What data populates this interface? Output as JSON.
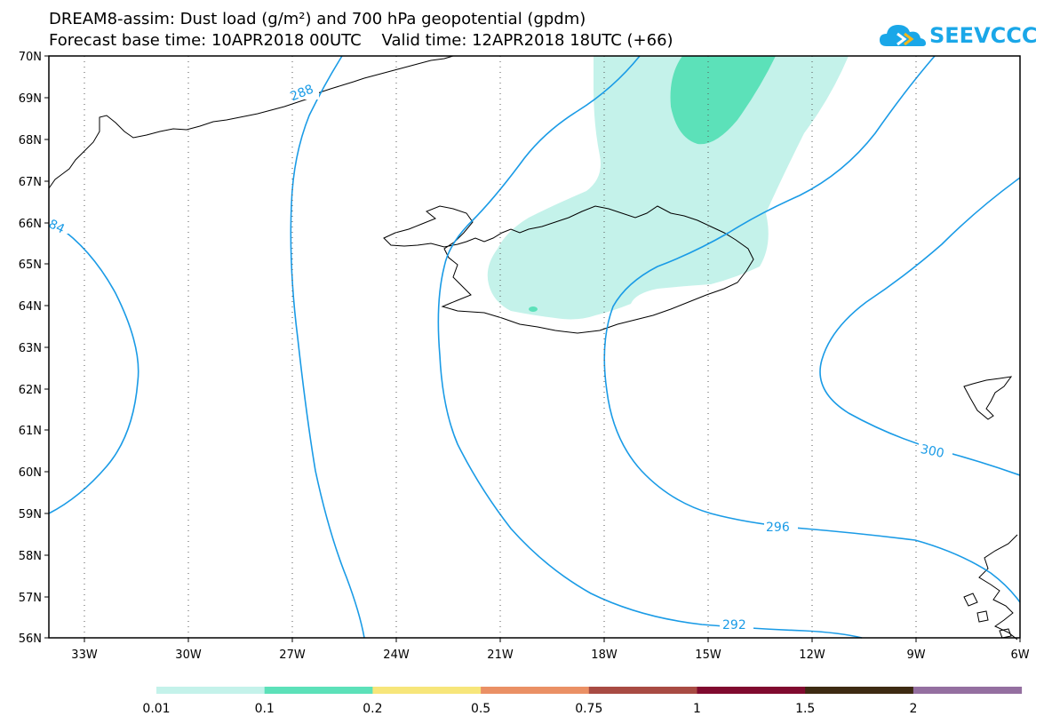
{
  "title_line1": "DREAM8-assim: Dust load (g/m²) and 700 hPa geopotential (gpdm)",
  "title_line2": "Forecast base time: 10APR2018 00UTC    Valid time: 12APR2018 18UTC (+66)",
  "logo": {
    "text": "SEEVCCC",
    "icon": "cloud-logo-icon",
    "color": "#1aa7e8"
  },
  "lat_labels": [
    "70N",
    "69N",
    "68N",
    "67N",
    "66N",
    "65N",
    "64N",
    "63N",
    "62N",
    "61N",
    "60N",
    "59N",
    "58N",
    "57N",
    "56N"
  ],
  "lon_labels": [
    "33W",
    "30W",
    "27W",
    "24W",
    "21W",
    "18W",
    "15W",
    "12W",
    "9W",
    "6W"
  ],
  "contour_labels": {
    "c284": "84",
    "c288": "288",
    "c292": "292",
    "c296": "296",
    "c300": "300"
  },
  "colorbar": {
    "labels": [
      "0.01",
      "0.1",
      "0.2",
      "0.5",
      "0.75",
      "1",
      "1.5",
      "2"
    ],
    "colors": [
      "#c4f2ea",
      "#5ce1b9",
      "#f7e67a",
      "#ea9065",
      "#a84b43",
      "#800a2f",
      "#3d2a12",
      "#946fa0"
    ]
  },
  "colors": {
    "contour": "#1a9be6",
    "dust_low": "#c4f2ea",
    "dust_mid": "#5ce1b9",
    "coast": "#000000"
  }
}
